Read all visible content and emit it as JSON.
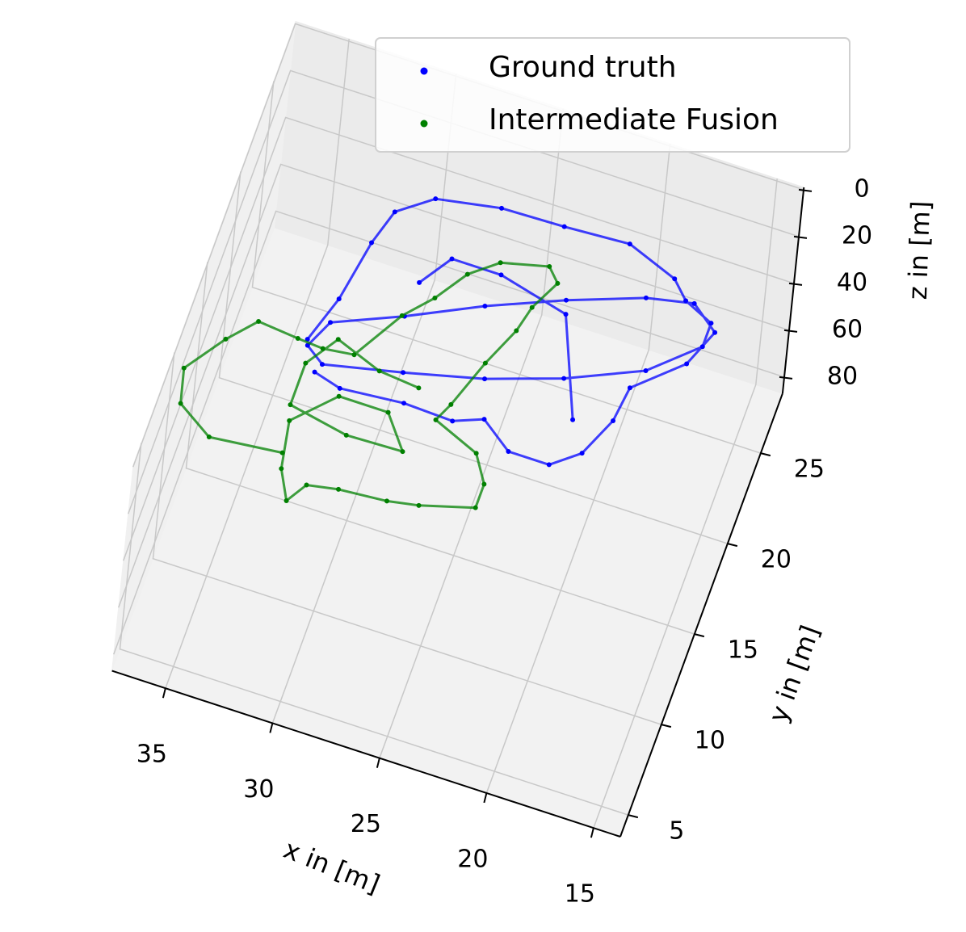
{
  "chart_data": {
    "type": "scatter3d",
    "xlabel": "x in [m]",
    "ylabel": "y in [m]",
    "zlabel": "z in [m]",
    "xlim": [
      13.75,
      37.5
    ],
    "ylim": [
      3.8,
      28.3
    ],
    "zlim": [
      -1,
      87
    ],
    "xticks": [
      15,
      20,
      25,
      30,
      35
    ],
    "yticks": [
      5,
      10,
      15,
      20,
      25
    ],
    "zticks": [
      0,
      20,
      40,
      60,
      80
    ],
    "grid": true,
    "legend": "upper right",
    "series": [
      {
        "name": "Ground truth",
        "color": "#0000ff",
        "x": [
          33.2,
          32.5,
          32.0,
          31.5,
          30.0,
          27.1,
          24.2,
          21.2,
          18.8,
          18.0,
          16.6,
          16.6,
          18.6,
          21.9,
          25.2,
          28.7,
          32.2,
          33.1,
          32.5,
          29.5,
          26.3,
          23.0,
          19.7,
          17.6,
          16.3,
          17.0,
          19.0,
          19.2,
          20.0,
          21.2,
          23.1,
          24.6,
          25.9,
          28.2,
          31.1,
          32.4,
          null,
          29.4,
          28.4,
          26.1,
          22.8,
          20.9
        ],
        "y": [
          17.7,
          20.2,
          23.5,
          25.4,
          26.7,
          27.3,
          27.4,
          27.6,
          26.6,
          25.7,
          25.0,
          23.7,
          21.6,
          19.9,
          18.6,
          17.6,
          16.7,
          17.4,
          18.9,
          20.4,
          22.2,
          23.8,
          25.2,
          25.7,
          24.6,
          22.6,
          20.5,
          18.6,
          16.5,
          15.4,
          15.4,
          16.6,
          16.0,
          16.1,
          15.8,
          16.2,
          null,
          22.3,
          24.0,
          24.0,
          23.1,
          18.0
        ],
        "z": [
          40,
          40,
          40,
          40,
          40,
          40,
          40,
          40,
          40,
          40,
          40,
          40,
          40,
          40,
          40,
          40,
          40,
          40,
          40,
          40,
          40,
          40,
          40,
          40,
          40,
          40,
          40,
          40,
          40,
          40,
          40,
          40,
          40,
          40,
          40,
          40,
          null,
          40,
          40,
          40,
          40,
          40
        ]
      },
      {
        "name": "Intermediate Fusion",
        "color": "#008000",
        "x": [
          32.0,
          35.3,
          37.0,
          37.4,
          36.1,
          35.0,
          33.1,
          31.9,
          30.5,
          29.1,
          28.0,
          27.0,
          25.8,
          23.7,
          23.1,
          23.8,
          24.1,
          24.9,
          25.7,
          26.1,
          23.9,
          23.1,
          23.1,
          25.5,
          26.9,
          29.1,
          30.5,
          31.1,
          31.8,
          32.2,
          30.5,
          28.2,
          27.0,
          29.6,
          32.4,
          32.4,
          31.4,
          29.2,
          27.3
        ],
        "y": [
          9.3,
          8.9,
          10.1,
          11.9,
          14.0,
          15.4,
          15.2,
          15.1,
          15.3,
          18.0,
          19.4,
          21.1,
          22.2,
          22.8,
          22.1,
          20.5,
          19.1,
          17.0,
          14.4,
          13.4,
          12.4,
          11.0,
          9.7,
          8.9,
          8.6,
          8.4,
          8.1,
          7.0,
          8.5,
          11.0,
          13.0,
          13.0,
          11.3,
          11.2,
          11.8,
          14.1,
          15.8,
          14.9,
          14.7
        ],
        "z": [
          20,
          20,
          20,
          20,
          20,
          20,
          20,
          20,
          20,
          20,
          20,
          20,
          20,
          20,
          20,
          20,
          20,
          20,
          20,
          20,
          20,
          20,
          20,
          20,
          20,
          20,
          20,
          20,
          20,
          20,
          20,
          20,
          20,
          20,
          20,
          20,
          20,
          20,
          20
        ]
      }
    ]
  }
}
